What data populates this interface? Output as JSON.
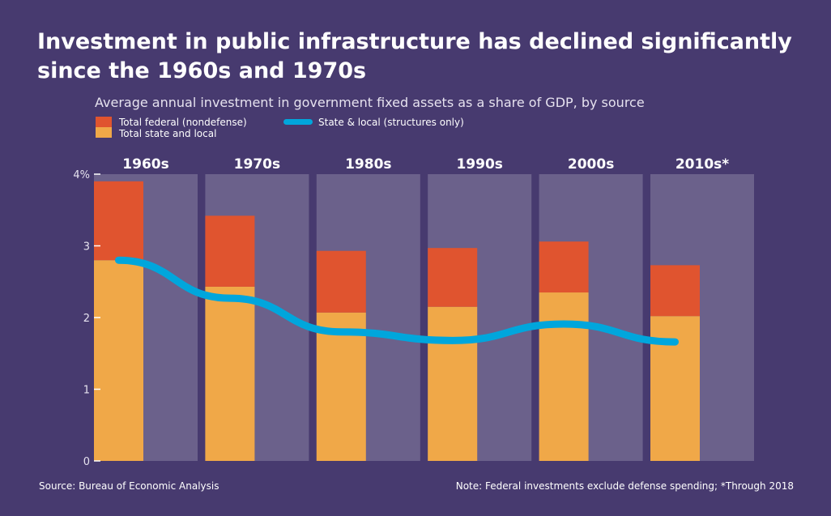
{
  "title": "Investment in public infrastructure has declined significantly since the 1960s and 1970s",
  "subtitle": "Average annual investment in government fixed assets as a share of GDP, by source",
  "source": "Source: Bureau of Economic Analysis",
  "note": "Note: Federal investments exclude defense spending; *Through 2018",
  "chart_data": {
    "type": "bar",
    "stacked": true,
    "categories": [
      "1960s",
      "1970s",
      "1980s",
      "1990s",
      "2000s",
      "2010s*"
    ],
    "series": [
      {
        "name": "Total state and local",
        "type": "bar",
        "color": "#f0a848",
        "values": [
          2.8,
          2.43,
          2.07,
          2.15,
          2.35,
          2.02
        ]
      },
      {
        "name": "Total federal (nondefense)",
        "type": "bar",
        "color": "#e0542f",
        "values": [
          1.1,
          0.99,
          0.86,
          0.82,
          0.71,
          0.71
        ]
      },
      {
        "name": "State & local (structures only)",
        "type": "line",
        "color": "#00a6dc",
        "values": [
          2.8,
          2.27,
          1.8,
          1.68,
          1.91,
          1.66
        ]
      }
    ],
    "yticks": [
      "0",
      "1",
      "2",
      "3",
      "4%"
    ],
    "ylim": [
      0,
      4
    ],
    "legend_placement": "top-left"
  }
}
